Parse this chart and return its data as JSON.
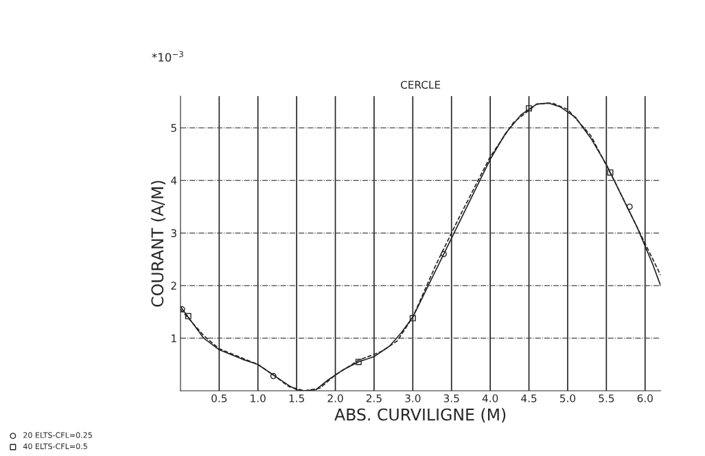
{
  "chart_data": {
    "type": "line",
    "title": "CERCLE",
    "xlabel": "ABS. CURVILIGNE (M)",
    "ylabel": "COURANT (A/M)",
    "annotations": [
      "*10$^{−3}$"
    ],
    "xlim": [
      0,
      6.2
    ],
    "xticks": [
      0.5,
      {
        "value": 1,
        "label": "1.0"
      },
      1.5,
      {
        "value": 2,
        "label": "2.0"
      },
      2.5,
      {
        "value": 3,
        "label": "3.0"
      },
      3.5,
      {
        "value": 4,
        "label": "4.0"
      },
      4.5,
      {
        "value": 5,
        "label": "5.0"
      },
      5.5,
      {
        "value": 6,
        "label": "6.0"
      }
    ],
    "ylim": [
      0,
      5.6
    ],
    "yticks": [
      1,
      2,
      3,
      4,
      5
    ],
    "grid": true,
    "legend": "bottom left",
    "series": [
      {
        "line_style": "solid",
        "color": "#222222",
        "x": [
          0.0,
          0.1,
          0.3,
          0.5,
          0.8,
          1.0,
          1.2,
          1.4,
          1.5,
          1.6,
          1.75,
          1.9,
          2.1,
          2.3,
          2.5,
          2.7,
          2.85,
          3.0,
          3.2,
          3.4,
          3.6,
          3.8,
          4.0,
          4.2,
          4.4,
          4.6,
          4.75,
          4.9,
          5.1,
          5.3,
          5.5,
          5.7,
          5.9,
          6.0,
          6.1,
          6.2
        ],
        "values": [
          1.6,
          1.4,
          1.0,
          0.78,
          0.6,
          0.5,
          0.3,
          0.1,
          0.02,
          0.0,
          0.02,
          0.2,
          0.4,
          0.55,
          0.65,
          0.85,
          1.1,
          1.4,
          2.0,
          2.6,
          3.2,
          3.8,
          4.4,
          4.9,
          5.25,
          5.45,
          5.47,
          5.4,
          5.2,
          4.8,
          4.3,
          3.7,
          3.1,
          2.75,
          2.4,
          2.0
        ]
      },
      {
        "line_style": "dashed",
        "color": "#222222",
        "x": [
          0.0,
          0.3,
          0.5,
          0.8,
          1.0,
          1.2,
          1.4,
          1.6,
          1.8,
          2.0,
          2.3,
          2.6,
          2.8,
          3.0,
          3.3,
          3.6,
          4.0,
          4.3,
          4.6,
          4.8,
          5.0,
          5.3,
          5.6,
          5.9,
          6.2
        ],
        "values": [
          1.55,
          1.05,
          0.8,
          0.62,
          0.5,
          0.3,
          0.08,
          0.0,
          0.05,
          0.3,
          0.58,
          0.75,
          0.95,
          1.4,
          2.4,
          3.3,
          4.45,
          5.1,
          5.45,
          5.47,
          5.35,
          4.85,
          4.0,
          3.1,
          2.2
        ]
      },
      {
        "type": "scatter",
        "name": "20 ELTS-CFL=0.25",
        "marker": "circle",
        "color": "#222222",
        "x": [
          0.02,
          1.2,
          3.4,
          5.8
        ],
        "values": [
          1.55,
          0.28,
          2.6,
          3.5
        ]
      },
      {
        "type": "scatter",
        "name": "40 ELTS-CFL=0.5",
        "marker": "square",
        "color": "#222222",
        "x": [
          0.1,
          2.3,
          3.0,
          4.5,
          5.55
        ],
        "values": [
          1.42,
          0.55,
          1.38,
          5.37,
          4.15
        ]
      }
    ]
  }
}
